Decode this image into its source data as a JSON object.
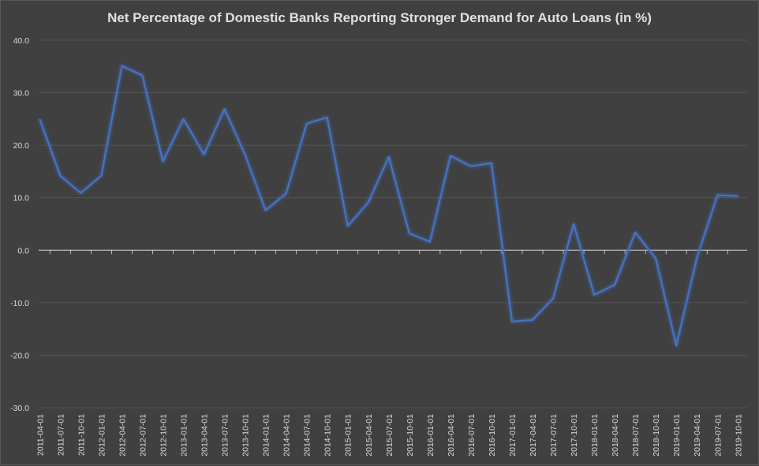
{
  "chart_data": {
    "type": "line",
    "title": "Net Percentage of Domestic Banks Reporting Stronger Demand for Auto Loans (in %)",
    "xlabel": "",
    "ylabel": "",
    "ylim": [
      -30,
      40
    ],
    "ytick_labels": [
      "-30.0",
      "-20.0",
      "-10.0",
      "0.0",
      "10.0",
      "20.0",
      "30.0",
      "40.0"
    ],
    "grid": true,
    "legend": "none",
    "line_color": "#4472c4",
    "categories": [
      "2011-04-01",
      "2011-07-01",
      "2011-10-01",
      "2012-01-01",
      "2012-04-01",
      "2012-07-01",
      "2012-10-01",
      "2013-01-01",
      "2013-04-01",
      "2013-07-01",
      "2013-10-01",
      "2014-01-01",
      "2014-04-01",
      "2014-07-01",
      "2014-10-01",
      "2015-01-01",
      "2015-04-01",
      "2015-07-01",
      "2015-10-01",
      "2016-01-01",
      "2016-04-01",
      "2016-07-01",
      "2016-10-01",
      "2017-01-01",
      "2017-04-01",
      "2017-07-01",
      "2017-10-01",
      "2018-01-01",
      "2018-04-01",
      "2018-07-01",
      "2018-10-01",
      "2019-01-01",
      "2019-04-01",
      "2019-07-01",
      "2019-10-01"
    ],
    "series": [
      {
        "values": [
          25.0,
          14.2,
          10.9,
          14.2,
          35.1,
          33.3,
          16.9,
          25.0,
          18.2,
          26.9,
          18.2,
          7.6,
          10.8,
          24.1,
          25.3,
          4.6,
          9.1,
          17.8,
          3.2,
          1.6,
          18.0,
          16.0,
          16.6,
          -13.6,
          -13.3,
          -9.2,
          5.0,
          -8.5,
          -6.6,
          3.4,
          -1.6,
          -18.2,
          -1.5,
          10.5,
          10.3
        ]
      }
    ]
  }
}
